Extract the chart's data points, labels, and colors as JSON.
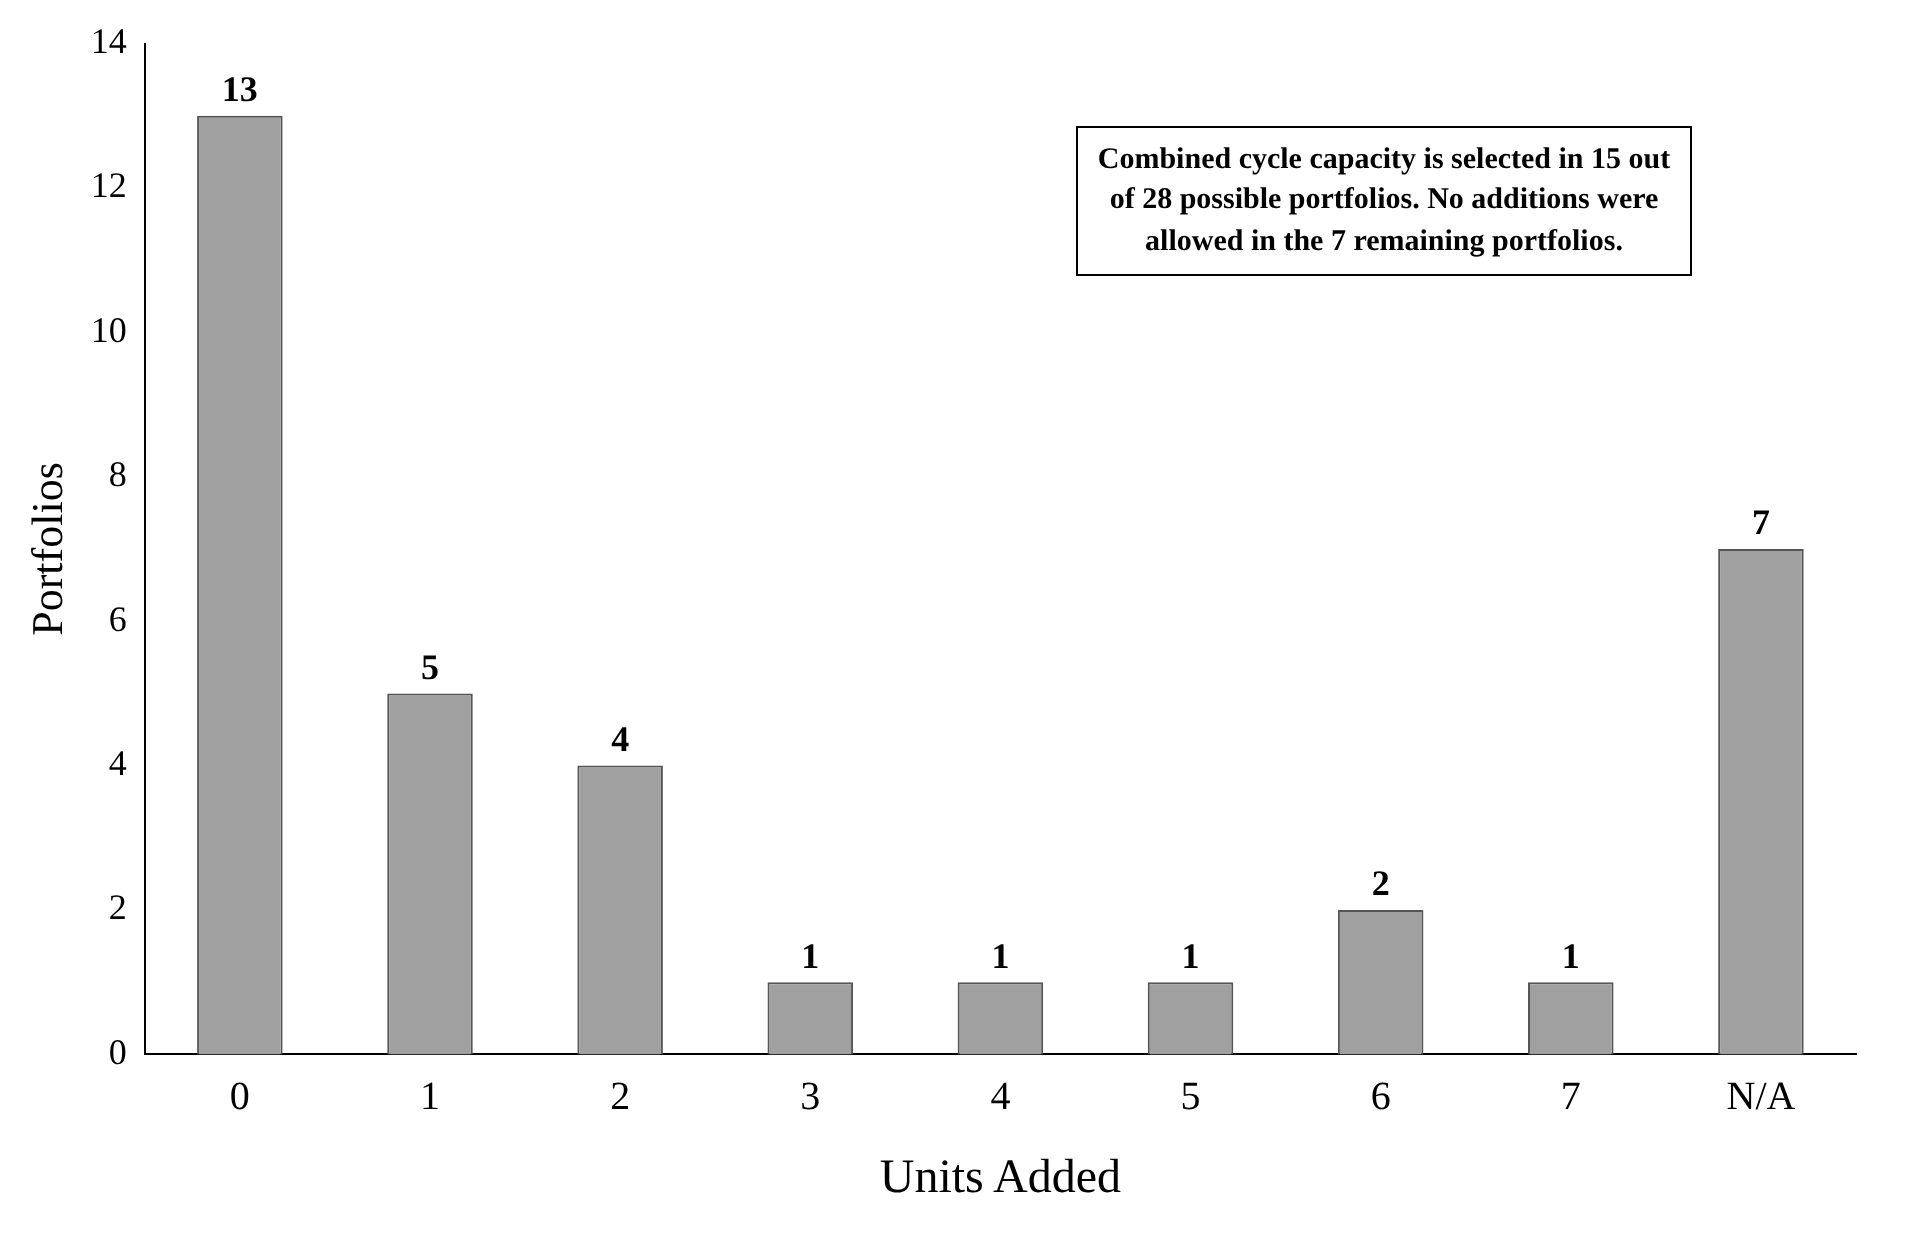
{
  "chart_data": {
    "type": "bar",
    "xlabel": "Units Added",
    "ylabel": "Portfolios",
    "categories": [
      "0",
      "1",
      "2",
      "3",
      "4",
      "5",
      "6",
      "7",
      "N/A"
    ],
    "values": [
      13,
      5,
      4,
      1,
      1,
      1,
      2,
      1,
      7
    ],
    "color": "#a0a0a0",
    "ylim": [
      0,
      14
    ],
    "yticks": [
      0,
      2,
      4,
      6,
      8,
      10,
      12,
      14
    ],
    "data_labels": true,
    "annotations": [
      "Combined cycle capacity is selected in 15 out of 28 possible portfolios. No additions were allowed in the 7 remaining portfolios."
    ]
  }
}
